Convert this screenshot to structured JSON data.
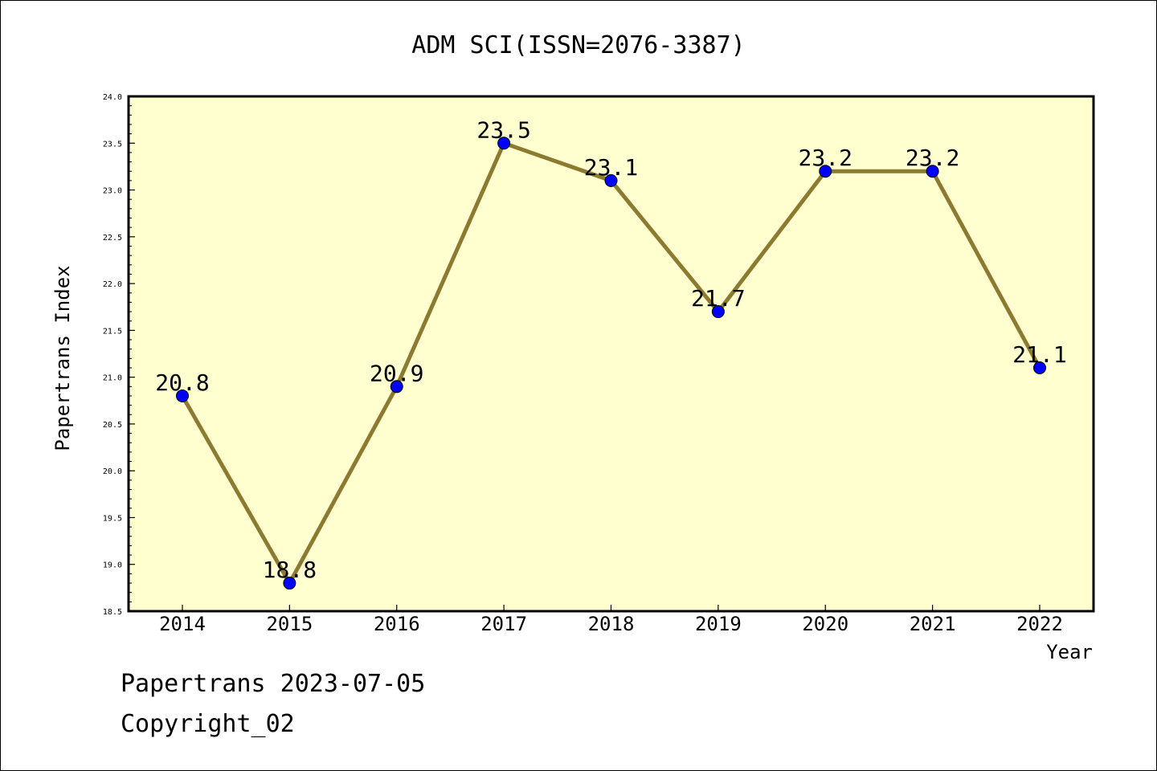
{
  "chart_data": {
    "type": "line",
    "title": "ADM SCI(ISSN=2076-3387)",
    "xlabel": "Year",
    "ylabel": "Papertrans Index",
    "categories": [
      "2014",
      "2015",
      "2016",
      "2017",
      "2018",
      "2019",
      "2020",
      "2021",
      "2022"
    ],
    "series": [
      {
        "values": [
          20.8,
          18.8,
          20.9,
          23.5,
          23.1,
          21.7,
          23.2,
          23.2,
          21.1
        ],
        "point_labels": [
          "20.8",
          "18.8",
          "20.9",
          "23.5",
          "23.1",
          "21.7",
          "23.2",
          "23.2",
          "21.1"
        ]
      }
    ],
    "ylim": [
      18.5,
      24.0
    ],
    "yticks": [
      "18.5",
      "19.0",
      "19.5",
      "20.0",
      "20.5",
      "21.0",
      "21.5",
      "22.0",
      "22.5",
      "23.0",
      "23.5",
      "24.0"
    ],
    "grid": false,
    "colors": {
      "plot_background": "#ffffd0",
      "line": "#8c7a30",
      "marker": "#0000ff",
      "frame": "#000000"
    }
  },
  "footer": {
    "line1": "Papertrans 2023-07-05",
    "line2": "Copyright_02"
  }
}
